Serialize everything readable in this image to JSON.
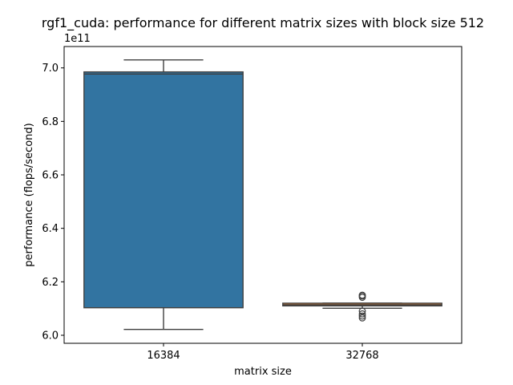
{
  "chart_data": {
    "type": "box",
    "title": "rgf1_cuda: performance for different matrix sizes with block size 512",
    "xlabel": "matrix size",
    "ylabel": "performance (flops/second)",
    "y_multiplier": "1e11",
    "ylim": [
      5.97,
      7.08
    ],
    "yticks": [
      6.0,
      6.2,
      6.4,
      6.6,
      6.8,
      7.0
    ],
    "ytick_labels": [
      "6.0",
      "6.2",
      "6.4",
      "6.6",
      "6.8",
      "7.0"
    ],
    "categories": [
      "16384",
      "32768"
    ],
    "grid": false,
    "boxes": [
      {
        "category": "16384",
        "color": "#3274a1",
        "whisker_low": 6.022,
        "q1": 6.103,
        "median": 6.977,
        "q3": 6.985,
        "whisker_high": 7.03,
        "outliers": []
      },
      {
        "category": "32768",
        "color": "#e1812c",
        "whisker_low": 6.101,
        "q1": 6.11,
        "median": 6.114,
        "q3": 6.12,
        "whisker_high": 6.12,
        "outliers": [
          6.065,
          6.072,
          6.08,
          6.09,
          6.142,
          6.147,
          6.15
        ]
      }
    ]
  }
}
